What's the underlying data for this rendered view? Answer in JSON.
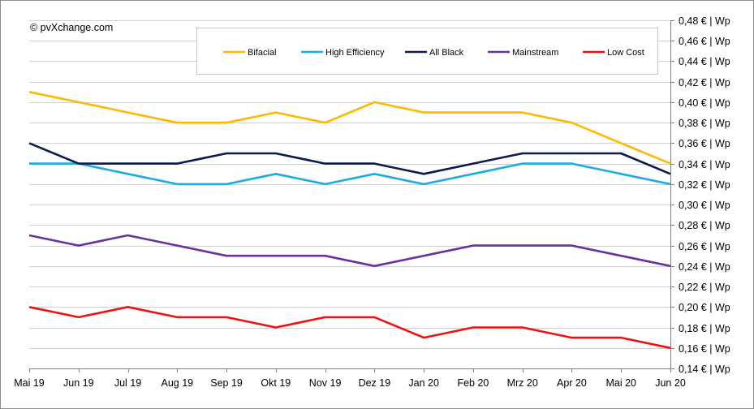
{
  "copyright": "© pvXchange.com",
  "chart_data": {
    "type": "line",
    "title": "",
    "xlabel": "",
    "ylabel": "",
    "categories": [
      "Mai 19",
      "Jun 19",
      "Jul 19",
      "Aug 19",
      "Sep 19",
      "Okt 19",
      "Nov 19",
      "Dez 19",
      "Jan 20",
      "Feb 20",
      "Mrz 20",
      "Apr 20",
      "Mai 20",
      "Jun 20"
    ],
    "ylim": [
      0.14,
      0.48
    ],
    "ytick_step": 0.02,
    "ytick_labels": [
      "0,14 € | Wp",
      "0,16 € | Wp",
      "0,18 € | Wp",
      "0,20 € | Wp",
      "0,22 € | Wp",
      "0,24 € | Wp",
      "0,26 € | Wp",
      "0,28 € | Wp",
      "0,30 € | Wp",
      "0,32 € | Wp",
      "0,34 € | Wp",
      "0,36 € | Wp",
      "0,38 € | Wp",
      "0,40 € | Wp",
      "0,42 € | Wp",
      "0,44 € | Wp",
      "0,46 € | Wp",
      "0,48 € | Wp"
    ],
    "grid": true,
    "legend_position": "top",
    "series": [
      {
        "name": "Bifacial",
        "color": "#ffb800",
        "values": [
          0.41,
          0.4,
          0.39,
          0.38,
          0.38,
          0.39,
          0.38,
          0.4,
          0.39,
          0.39,
          0.39,
          0.38,
          0.36,
          0.34
        ]
      },
      {
        "name": "High Efficiency",
        "color": "#1aaae6",
        "values": [
          0.34,
          0.34,
          0.33,
          0.32,
          0.32,
          0.33,
          0.32,
          0.33,
          0.32,
          0.33,
          0.34,
          0.34,
          0.33,
          0.32
        ]
      },
      {
        "name": "All Black",
        "color": "#0c1a4d",
        "values": [
          0.36,
          0.34,
          0.34,
          0.34,
          0.35,
          0.35,
          0.34,
          0.34,
          0.33,
          0.34,
          0.35,
          0.35,
          0.35,
          0.33
        ]
      },
      {
        "name": "Mainstream",
        "color": "#6a2fa0",
        "values": [
          0.27,
          0.26,
          0.27,
          0.26,
          0.25,
          0.25,
          0.25,
          0.24,
          0.25,
          0.26,
          0.26,
          0.26,
          0.25,
          0.24
        ]
      },
      {
        "name": "Low Cost",
        "color": "#ee1111",
        "values": [
          0.2,
          0.19,
          0.2,
          0.19,
          0.19,
          0.18,
          0.19,
          0.19,
          0.17,
          0.18,
          0.18,
          0.17,
          0.17,
          0.16
        ]
      }
    ]
  }
}
